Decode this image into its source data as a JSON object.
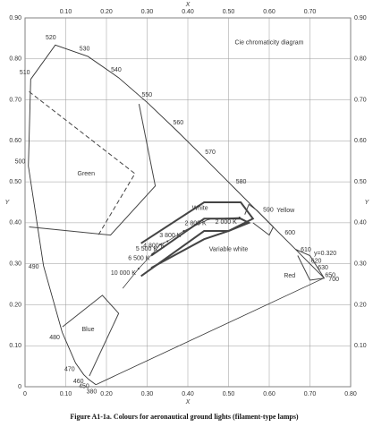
{
  "chart_data": {
    "type": "chromaticity",
    "title": "Cie chromaticity diagram",
    "caption": "Figure A1-1a.   Colours for aeronautical ground lights (filament-type lamps)",
    "xlabel": "X",
    "ylabel": "Y",
    "xlim": [
      0,
      0.8
    ],
    "ylim": [
      0,
      0.9
    ],
    "grid": true,
    "xticks": [
      0,
      {
        "value": 0.1,
        "label": "0.10"
      },
      {
        "value": 0.2,
        "label": "0.20"
      },
      {
        "value": 0.3,
        "label": "0.30"
      },
      {
        "value": 0.4,
        "label": "0.40"
      },
      {
        "value": 0.5,
        "label": "0.50"
      },
      {
        "value": 0.6,
        "label": "0.60"
      },
      {
        "value": 0.7,
        "label": "0.70"
      },
      {
        "value": 0.8,
        "label": "0.80"
      }
    ],
    "x2ticks": [
      {
        "value": 0.1,
        "label": "0.10"
      },
      {
        "value": 0.2,
        "label": "0.20"
      },
      {
        "value": 0.3,
        "label": "0.30"
      },
      {
        "value": 0.4,
        "label": "0.40"
      },
      {
        "value": 0.5,
        "label": "0.50"
      },
      {
        "value": 0.6,
        "label": "0.60"
      },
      {
        "value": 0.7,
        "label": "0.70"
      }
    ],
    "yticks": [
      0,
      {
        "value": 0.1,
        "label": "0.10"
      },
      {
        "value": 0.2,
        "label": "0.20"
      },
      {
        "value": 0.3,
        "label": "0.30"
      },
      {
        "value": 0.4,
        "label": "0.40"
      },
      {
        "value": 0.5,
        "label": "0.50"
      },
      {
        "value": 0.6,
        "label": "0.60"
      },
      {
        "value": 0.7,
        "label": "0.70"
      },
      {
        "value": 0.8,
        "label": "0.80"
      },
      {
        "value": 0.9,
        "label": "0.90"
      }
    ],
    "y2ticks": [
      {
        "value": 0.1,
        "label": "0.10"
      },
      {
        "value": 0.2,
        "label": "0.20"
      },
      {
        "value": 0.3,
        "label": "0.30"
      },
      {
        "value": 0.4,
        "label": "0.40"
      },
      {
        "value": 0.5,
        "label": "0.50"
      },
      {
        "value": 0.6,
        "label": "0.60"
      },
      {
        "value": 0.7,
        "label": "0.70"
      },
      {
        "value": 0.8,
        "label": "0.80"
      },
      {
        "value": 0.9,
        "label": "0.90"
      }
    ],
    "locus": {
      "labels": [
        380,
        450,
        460,
        470,
        480,
        490,
        500,
        510,
        520,
        530,
        540,
        550,
        560,
        570,
        580,
        590,
        600,
        610,
        620,
        630,
        650,
        700
      ],
      "x": [
        0.1741,
        0.1566,
        0.144,
        0.1241,
        0.0913,
        0.0454,
        0.0082,
        0.0139,
        0.0743,
        0.1547,
        0.2296,
        0.3016,
        0.3731,
        0.4441,
        0.5125,
        0.5752,
        0.627,
        0.6658,
        0.6915,
        0.7079,
        0.726,
        0.7347
      ],
      "y": [
        0.005,
        0.0177,
        0.0297,
        0.0578,
        0.1327,
        0.295,
        0.5384,
        0.7502,
        0.8338,
        0.8059,
        0.7543,
        0.6923,
        0.6245,
        0.5547,
        0.4866,
        0.4242,
        0.3725,
        0.334,
        0.3083,
        0.292,
        0.274,
        0.2653
      ]
    },
    "regions": [
      {
        "name": "Green",
        "label_x": 0.15,
        "label_y": 0.52,
        "x": [
          0.01,
          0.21,
          0.32,
          0.28
        ],
        "y": [
          0.39,
          0.37,
          0.49,
          0.69
        ],
        "dashed_x": [
          0.01,
          0.27,
          0.18
        ],
        "dashed_y": [
          0.72,
          0.52,
          0.37
        ]
      },
      {
        "name": "Blue",
        "label_x": 0.155,
        "label_y": 0.14,
        "x": [
          0.092,
          0.19,
          0.23,
          0.158
        ],
        "y": [
          0.146,
          0.223,
          0.179,
          0.026
        ]
      },
      {
        "name": "Yellow",
        "label_x": 0.64,
        "label_y": 0.43,
        "x": [
          0.54,
          0.55,
          0.57,
          0.61,
          0.6,
          0.56
        ],
        "y": [
          0.42,
          0.445,
          0.43,
          0.39,
          0.37,
          0.4
        ]
      },
      {
        "name": "Red",
        "label_x": 0.65,
        "label_y": 0.27,
        "x": [
          0.665,
          0.7,
          0.735,
          0.7,
          0.67
        ],
        "y": [
          0.335,
          0.32,
          0.265,
          0.26,
          0.32
        ]
      },
      {
        "name": "White",
        "label_x": 0.43,
        "label_y": 0.435,
        "x": [
          0.285,
          0.44,
          0.53,
          0.56,
          0.5,
          0.44,
          0.285
        ],
        "y": [
          0.35,
          0.45,
          0.45,
          0.41,
          0.38,
          0.38,
          0.27
        ]
      },
      {
        "name": "Variable white",
        "label_x": 0.5,
        "label_y": 0.335,
        "x": [
          0.31,
          0.44,
          0.53,
          0.55,
          0.5,
          0.44,
          0.31
        ],
        "y": [
          0.32,
          0.41,
          0.41,
          0.4,
          0.38,
          0.36,
          0.29
        ]
      }
    ],
    "planck": {
      "labels": [
        null,
        "10 000 K",
        "6 500 K",
        "5 500 K",
        "4 800 K",
        "3 800 K",
        "2 800 K",
        "2 000 K"
      ],
      "x": [
        0.24,
        0.279,
        0.313,
        0.332,
        0.35,
        0.39,
        0.452,
        0.527
      ],
      "y": [
        0.24,
        0.288,
        0.324,
        0.347,
        0.355,
        0.38,
        0.409,
        0.413
      ]
    },
    "annotations": [
      {
        "text": "y=0.320",
        "x": 0.71,
        "y": 0.325
      }
    ]
  }
}
